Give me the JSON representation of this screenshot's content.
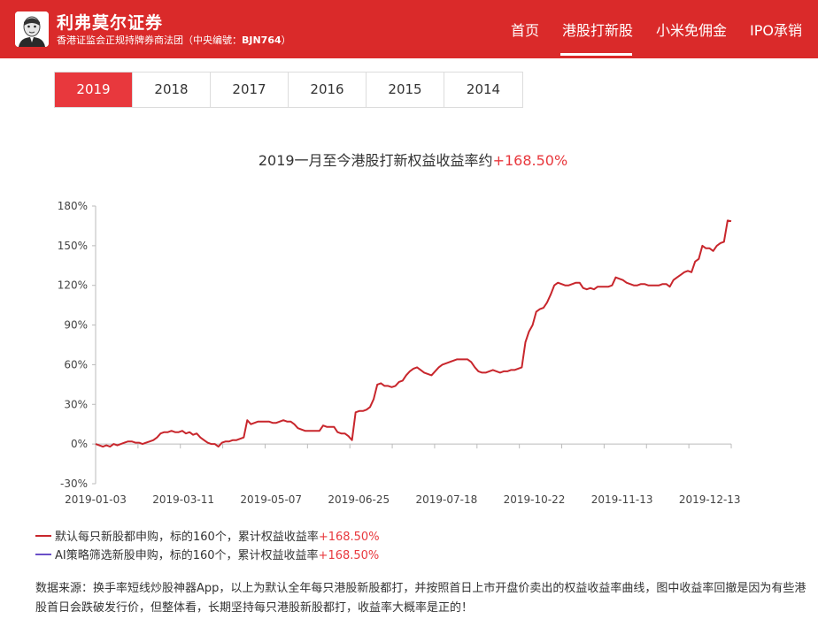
{
  "header": {
    "brand_name": "利弗莫尔证券",
    "brand_sub_prefix": "香港证监会正规持牌券商法团（中央编號：",
    "brand_sub_code": "BJN764",
    "brand_sub_suffix": "）",
    "nav": [
      {
        "label": "首页",
        "active": false
      },
      {
        "label": "港股打新股",
        "active": true
      },
      {
        "label": "小米免佣金",
        "active": false
      },
      {
        "label": "IPO承销",
        "active": false
      }
    ]
  },
  "year_tabs": [
    {
      "label": "2019",
      "active": true
    },
    {
      "label": "2018",
      "active": false
    },
    {
      "label": "2017",
      "active": false
    },
    {
      "label": "2016",
      "active": false
    },
    {
      "label": "2015",
      "active": false
    },
    {
      "label": "2014",
      "active": false
    }
  ],
  "chart_title": {
    "text": "2019一月至今港股打新权益收益率约",
    "value": "+168.50%"
  },
  "colors": {
    "brand_red": "#da2a2a",
    "accent_red": "#e8383d",
    "series_red": "#c8262c",
    "series_purple": "#6a4fc8"
  },
  "legend": [
    {
      "text": "默认每只新股都申购，标的160个，累计权益收益率",
      "value": "+168.50%",
      "color": "#c8262c"
    },
    {
      "text": "AI策略筛选新股申购，标的160个，累计权益收益率",
      "value": "+168.50%",
      "color": "#6a4fc8"
    }
  ],
  "footnote": "数据来源：换手率短线炒股神器App，以上为默认全年每只港股新股都打，并按照首日上市开盘价卖出的权益收益率曲线，图中收益率回撤是因为有些港股首日会跌破发行价，但整体看，长期坚持每只港股新股都打，收益率大概率是正的！",
  "chart_data": {
    "type": "line",
    "title": "2019一月至今港股打新权益收益率约+168.50%",
    "xlabel": "",
    "ylabel": "",
    "ylim": [
      -30,
      180
    ],
    "y_ticks": [
      -30,
      0,
      30,
      60,
      90,
      120,
      150,
      180
    ],
    "y_tick_labels": [
      "-30%",
      "0%",
      "30%",
      "60%",
      "90%",
      "120%",
      "150%",
      "180%"
    ],
    "x_tick_labels": [
      "2019-01-03",
      "2019-03-11",
      "2019-05-07",
      "2019-06-25",
      "2019-07-18",
      "2019-10-22",
      "2019-11-13",
      "2019-12-13"
    ],
    "grid": false,
    "legend_position": "bottom-left",
    "series": [
      {
        "name": "默认每只新股都申购，标的160个，累计权益收益率+168.50%",
        "color": "#c8262c",
        "values": [
          0,
          -1,
          -2,
          -1,
          -2,
          0,
          -1,
          0,
          1,
          2,
          2,
          1,
          1,
          0,
          1,
          2,
          3,
          5,
          8,
          9,
          9,
          10,
          9,
          9,
          10,
          8,
          9,
          7,
          8,
          5,
          3,
          1,
          0,
          0,
          -2,
          1,
          2,
          2,
          3,
          3,
          4,
          5,
          18,
          15,
          16,
          17,
          17,
          17,
          17,
          16,
          16,
          17,
          18,
          17,
          17,
          15,
          12,
          11,
          10,
          10,
          10,
          10,
          10,
          14,
          13,
          13,
          13,
          9,
          8,
          8,
          6,
          3,
          24,
          25,
          25,
          26,
          28,
          34,
          45,
          46,
          44,
          44,
          43,
          44,
          47,
          48,
          52,
          55,
          57,
          58,
          56,
          54,
          53,
          52,
          55,
          58,
          60,
          61,
          62,
          63,
          64,
          64,
          64,
          64,
          62,
          58,
          55,
          54,
          54,
          55,
          56,
          55,
          54,
          55,
          55,
          56,
          56,
          57,
          58,
          77,
          85,
          90,
          100,
          102,
          103,
          107,
          113,
          120,
          122,
          121,
          120,
          120,
          121,
          122,
          122,
          118,
          117,
          118,
          117,
          119,
          119,
          119,
          119,
          120,
          126,
          125,
          124,
          122,
          121,
          120,
          120,
          121,
          121,
          120,
          120,
          120,
          120,
          121,
          121,
          119,
          124,
          126,
          128,
          130,
          131,
          130,
          138,
          140,
          150,
          148,
          148,
          146,
          150,
          152,
          153,
          169,
          168.5
        ]
      },
      {
        "name": "AI策略筛选新股申购，标的160个，累计权益收益率+168.50%",
        "color": "#6a4fc8",
        "values": []
      }
    ]
  }
}
